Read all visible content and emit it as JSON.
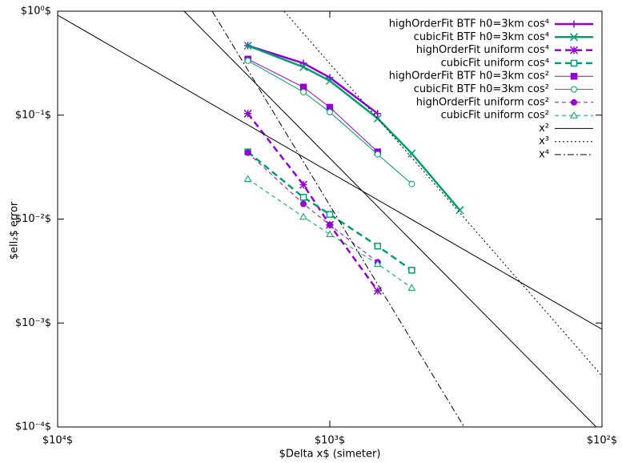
{
  "chart_data": {
    "type": "line",
    "xlabel": "$Delta x$ (simeter)",
    "ylabel": "$ell₂$ error",
    "xscale": "log",
    "yscale": "log",
    "xlim": [
      10000,
      100
    ],
    "ylim": [
      0.0001,
      1
    ],
    "xticks": [
      {
        "value": 10000,
        "label": "$10⁴$"
      },
      {
        "value": 1000,
        "label": "$10³$"
      },
      {
        "value": 100,
        "label": "$10²$"
      }
    ],
    "yticks": [
      {
        "value": 1,
        "label": "$10⁰$"
      },
      {
        "value": 0.1,
        "label": "$10⁻¹$"
      },
      {
        "value": 0.01,
        "label": "$10⁻²$"
      },
      {
        "value": 0.001,
        "label": "$10⁻³$"
      },
      {
        "value": 0.0001,
        "label": "$10⁻⁴$"
      }
    ],
    "legend": "top-right",
    "series": [
      {
        "name": "highOrderFit BTF h0=3km cos⁴",
        "color": "#9400d3",
        "width": 2.5,
        "dash": "",
        "marker": "plus",
        "x": [
          2000,
          1250,
          1000,
          667
        ],
        "values": [
          0.467,
          0.316,
          0.23,
          0.1035
        ]
      },
      {
        "name": "cubicFit BTF h0=3km cos⁴",
        "color": "#009e73",
        "width": 2.5,
        "dash": "",
        "marker": "cross",
        "x": [
          2000,
          1250,
          1000,
          667,
          500,
          333
        ],
        "values": [
          0.467,
          0.29,
          0.214,
          0.093,
          0.0428,
          0.0122
        ]
      },
      {
        "name": "highOrderFit uniform cos⁴",
        "color": "#9400d3",
        "width": 2.5,
        "dash": "8,5",
        "marker": "star",
        "x": [
          2000,
          1250,
          1000,
          667
        ],
        "values": [
          0.1035,
          0.0214,
          0.0088,
          0.00204
        ]
      },
      {
        "name": "cubicFit uniform cos⁴",
        "color": "#009e73",
        "width": 2.5,
        "dash": "8,5",
        "marker": "open-square",
        "x": [
          2000,
          1250,
          1000,
          667,
          500
        ],
        "values": [
          0.0443,
          0.0162,
          0.0111,
          0.0055,
          0.00322
        ]
      },
      {
        "name": "highOrderFit BTF h0=3km cos²",
        "color": "#9400d3",
        "width": 1,
        "dash": "",
        "marker": "filled-square",
        "x": [
          2000,
          1250,
          1000,
          667
        ],
        "values": [
          0.346,
          0.186,
          0.119,
          0.0443
        ]
      },
      {
        "name": "cubicFit BTF h0=3km cos²",
        "color": "#009e73",
        "width": 1,
        "dash": "",
        "marker": "open-circle",
        "x": [
          2000,
          1250,
          1000,
          667,
          500
        ],
        "values": [
          0.334,
          0.167,
          0.107,
          0.042,
          0.0218
        ]
      },
      {
        "name": "highOrderFit uniform cos²",
        "color": "#9400d3",
        "width": 1,
        "dash": "5,4",
        "marker": "filled-circle",
        "x": [
          2000,
          1250,
          1000,
          667
        ],
        "values": [
          0.0435,
          0.014,
          0.0088,
          0.00385
        ]
      },
      {
        "name": "cubicFit uniform cos²",
        "color": "#009e73",
        "width": 1,
        "dash": "5,4",
        "marker": "open-triangle",
        "x": [
          2000,
          1250,
          1000,
          667,
          500
        ],
        "values": [
          0.0243,
          0.0105,
          0.00714,
          0.00371,
          0.00218
        ]
      },
      {
        "name": "x²",
        "color": "#000000",
        "width": 1,
        "dash": "",
        "marker": "none",
        "x": [
          10000,
          100
        ],
        "values": [
          0.916,
          0.00087
        ]
      },
      {
        "name": "x³",
        "color": "#000000",
        "width": 1,
        "dash": "2,3",
        "marker": "none",
        "x": [
          1472,
          100
        ],
        "values": [
          1,
          0.00031
        ]
      },
      {
        "name": "x⁴",
        "color": "#000000",
        "width": 1,
        "dash": "8,3,2,3",
        "marker": "none",
        "x": [
          2705,
          321
        ],
        "values": [
          1,
          0.0001
        ]
      },
      {
        "name": null,
        "color": "#000000",
        "width": 1,
        "dash": "",
        "marker": "none",
        "x": [
          3430,
          105
        ],
        "values": [
          1,
          0.0001
        ]
      }
    ]
  }
}
